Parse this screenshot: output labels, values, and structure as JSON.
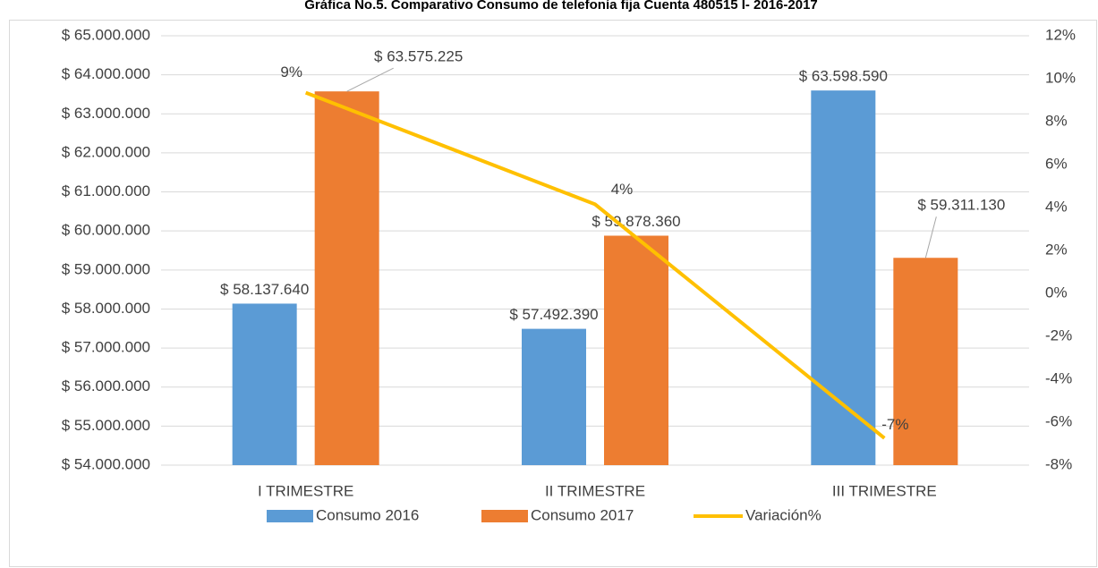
{
  "chart_data": {
    "type": "bar",
    "title": "Gráfica No.5. Comparativo Consumo de telefonía fija Cuenta 480515 I- 2016-2017",
    "categories": [
      "I TRIMESTRE",
      "II TRIMESTRE",
      "III TRIMESTRE"
    ],
    "series": [
      {
        "name": "Consumo 2016",
        "color": "#5b9bd5",
        "values": [
          58137640,
          57492390,
          63598590
        ],
        "value_labels": [
          "$ 58.137.640",
          "$ 57.492.390",
          "$ 63.598.590"
        ]
      },
      {
        "name": "Consumo 2017",
        "color": "#ed7d31",
        "values": [
          63575225,
          59878360,
          59311130
        ],
        "value_labels": [
          "$ 63.575.225",
          "$ 59.878.360",
          "$ 59.311.130"
        ]
      },
      {
        "name": "Variación%",
        "color": "#ffc000",
        "type": "line",
        "axis": "y2",
        "values": [
          9.35,
          4.15,
          -6.74
        ],
        "value_labels": [
          "9%",
          "4%",
          "-7%"
        ]
      }
    ],
    "ylim": [
      54000000,
      65000000
    ],
    "yticks": [
      {
        "value": 54000000,
        "label": "$ 54.000.000"
      },
      {
        "value": 55000000,
        "label": "$ 55.000.000"
      },
      {
        "value": 56000000,
        "label": "$ 56.000.000"
      },
      {
        "value": 57000000,
        "label": "$ 57.000.000"
      },
      {
        "value": 58000000,
        "label": "$ 58.000.000"
      },
      {
        "value": 59000000,
        "label": "$ 59.000.000"
      },
      {
        "value": 60000000,
        "label": "$ 60.000.000"
      },
      {
        "value": 61000000,
        "label": "$ 61.000.000"
      },
      {
        "value": 62000000,
        "label": "$ 62.000.000"
      },
      {
        "value": 63000000,
        "label": "$ 63.000.000"
      },
      {
        "value": 64000000,
        "label": "$ 64.000.000"
      },
      {
        "value": 65000000,
        "label": "$ 65.000.000"
      }
    ],
    "y2lim": [
      -8,
      12
    ],
    "y2ticks": [
      {
        "value": -8,
        "label": "-8%"
      },
      {
        "value": -6,
        "label": "-6%"
      },
      {
        "value": -4,
        "label": "-4%"
      },
      {
        "value": -2,
        "label": "-2%"
      },
      {
        "value": 0,
        "label": "0%"
      },
      {
        "value": 2,
        "label": "2%"
      },
      {
        "value": 4,
        "label": "4%"
      },
      {
        "value": 6,
        "label": "6%"
      },
      {
        "value": 8,
        "label": "8%"
      },
      {
        "value": 10,
        "label": "10%"
      },
      {
        "value": 12,
        "label": "12%"
      }
    ],
    "grid": true,
    "legend": "bottom"
  }
}
